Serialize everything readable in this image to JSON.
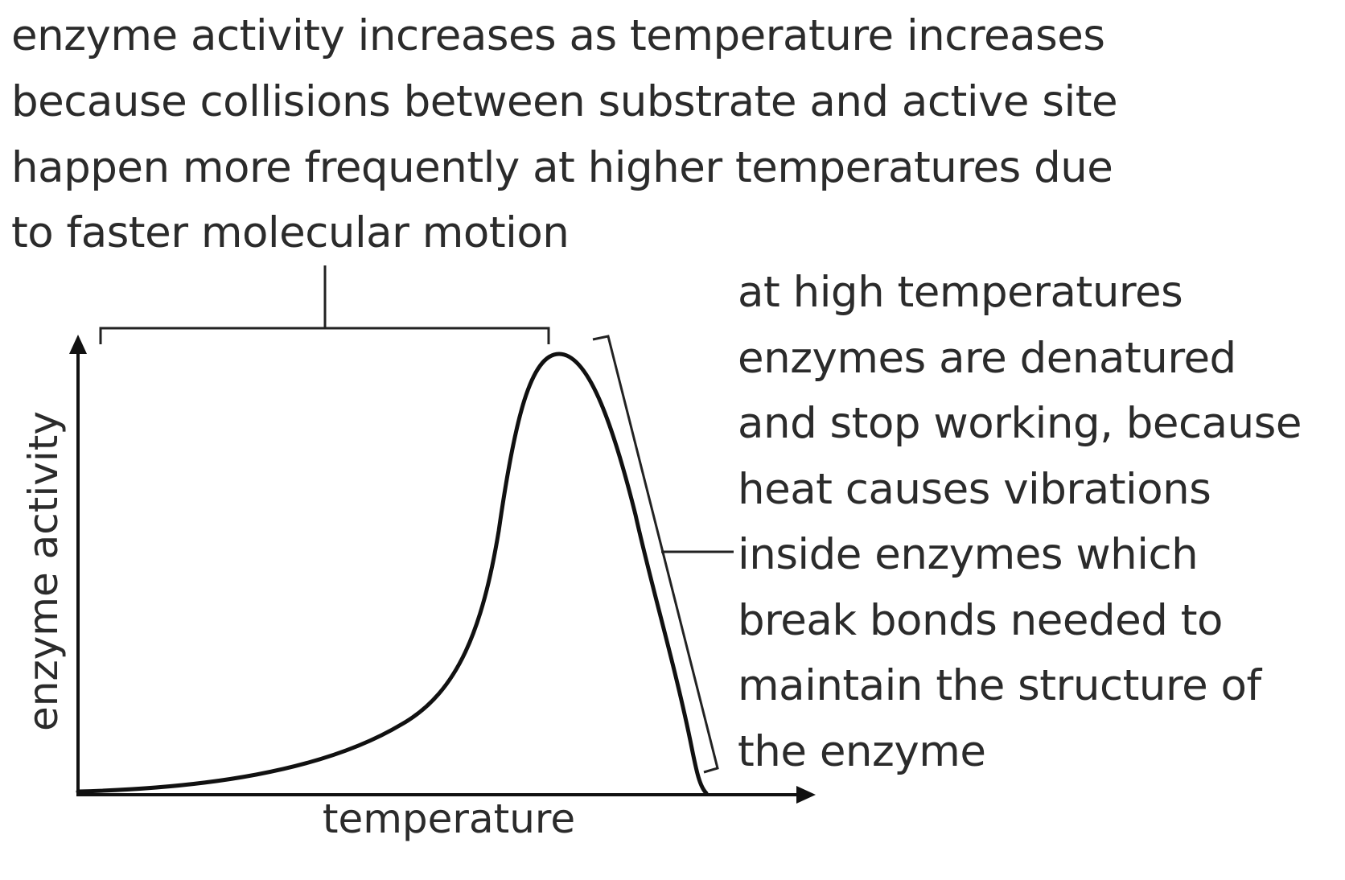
{
  "annotations": {
    "increase_lines": [
      "enzyme activity increases as temperature increases",
      "because collisions between substrate and active site",
      "happen more frequently at higher temperatures due",
      "to faster molecular motion"
    ],
    "denature_lines": [
      "at high temperatures",
      "enzymes are denatured",
      "and stop working, because",
      "heat causes vibrations",
      "inside enzymes which",
      "break bonds needed to",
      "maintain the structure of",
      "the enzyme"
    ]
  },
  "axes": {
    "x_label": "temperature",
    "y_label": "enzyme activity"
  },
  "colors": {
    "ink": "#111111",
    "text": "#2b2b2b"
  }
}
